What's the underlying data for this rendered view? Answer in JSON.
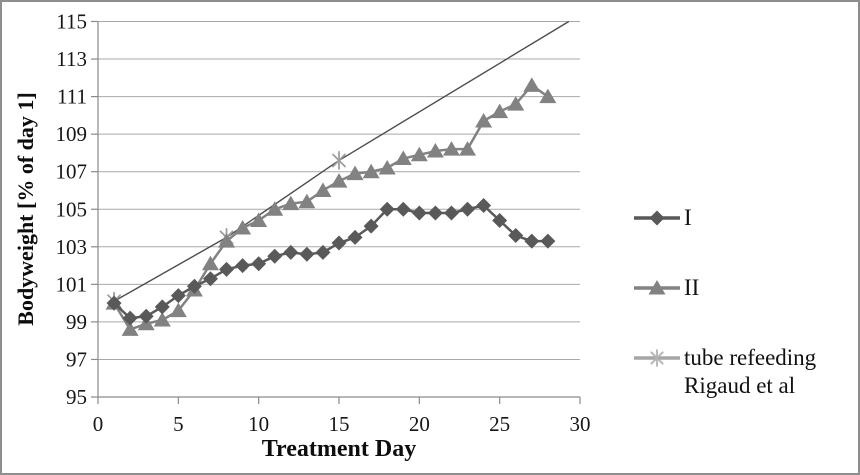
{
  "chart_data": {
    "type": "line",
    "title": "",
    "xlabel": "Treatment Day",
    "ylabel": "Bodyweight [% of day 1]",
    "xlim": [
      0,
      30
    ],
    "ylim": [
      95,
      115
    ],
    "x_ticks": [
      0,
      5,
      10,
      15,
      20,
      25,
      30
    ],
    "y_ticks": [
      95,
      97,
      99,
      101,
      103,
      105,
      107,
      109,
      111,
      113,
      115
    ],
    "grid": "horizontal",
    "legend_position": "right",
    "series": [
      {
        "name": "I",
        "marker": "diamond",
        "color": "#595959",
        "line_width": 2.5,
        "days": [
          1,
          2,
          3,
          4,
          5,
          6,
          7,
          8,
          9,
          10,
          11,
          12,
          13,
          14,
          15,
          16,
          17,
          18,
          19,
          20,
          21,
          22,
          23,
          24,
          25,
          26,
          27,
          28
        ],
        "values": [
          100.0,
          99.2,
          99.3,
          99.8,
          100.4,
          100.9,
          101.3,
          101.8,
          102.0,
          102.1,
          102.5,
          102.7,
          102.6,
          102.7,
          103.2,
          103.5,
          104.1,
          105.0,
          105.0,
          104.8,
          104.8,
          104.8,
          105.0,
          105.2,
          104.4,
          103.6,
          103.3,
          103.3
        ]
      },
      {
        "name": "II",
        "marker": "triangle",
        "color": "#828282",
        "line_width": 2.5,
        "days": [
          1,
          2,
          3,
          4,
          5,
          6,
          7,
          8,
          9,
          10,
          11,
          12,
          13,
          14,
          15,
          16,
          17,
          18,
          19,
          20,
          21,
          22,
          23,
          24,
          25,
          26,
          27,
          28
        ],
        "values": [
          100.0,
          98.6,
          98.9,
          99.1,
          99.6,
          100.7,
          102.1,
          103.3,
          104.0,
          104.4,
          105.0,
          105.3,
          105.4,
          106.0,
          106.5,
          106.9,
          107.0,
          107.2,
          107.7,
          107.9,
          108.1,
          108.2,
          108.2,
          109.7,
          110.2,
          110.6,
          111.6,
          111.0
        ]
      },
      {
        "name": "tube refeeding Rigaud et al",
        "marker": "asterisk",
        "color": "#9e9e9e",
        "line_color": "#4d4d4d",
        "line_width": 1.4,
        "days": [
          1,
          8,
          15,
          29.3
        ],
        "values": [
          100.1,
          103.5,
          107.6,
          115.0
        ],
        "marker_days": [
          1,
          8,
          15
        ]
      }
    ]
  },
  "legend": {
    "items": [
      {
        "label": "I"
      },
      {
        "label": "II"
      },
      {
        "label": "tube refeeding Rigaud et al"
      }
    ]
  }
}
